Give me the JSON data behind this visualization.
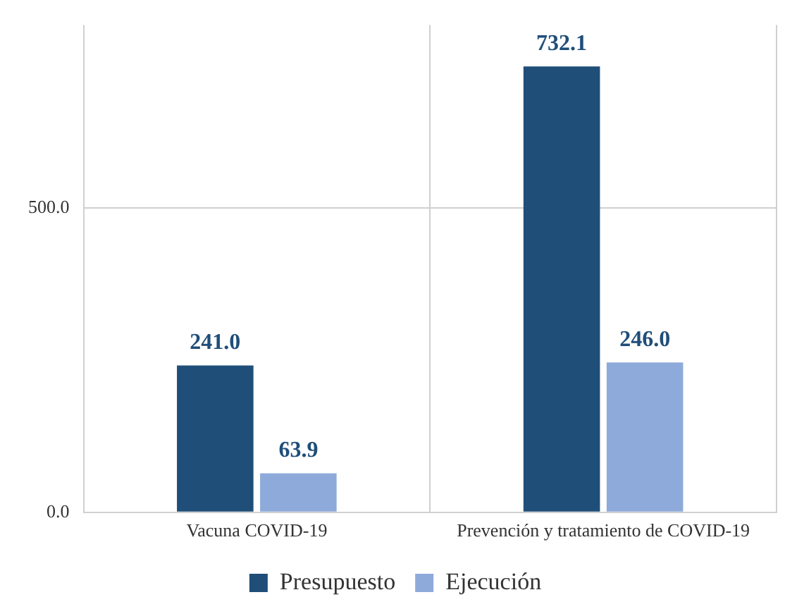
{
  "chart_data": {
    "type": "bar",
    "categories": [
      "Vacuna COVID-19",
      "Prevención y tratamiento de COVID-19"
    ],
    "series": [
      {
        "name": "Presupuesto",
        "color": "#1f4e79",
        "values": [
          241,
          732.1
        ],
        "value_labels": [
          "241.0",
          "732.1"
        ]
      },
      {
        "name": "Ejecución",
        "color": "#8eaadb",
        "values": [
          63.9,
          246
        ],
        "value_labels": [
          "63.9",
          "246.0"
        ]
      }
    ],
    "ylim": [
      0,
      800
    ],
    "yticks": [
      {
        "value": 0,
        "label": "0.0"
      },
      {
        "value": 500,
        "label": "500.0"
      }
    ],
    "grid": true,
    "legend": "bottom"
  }
}
